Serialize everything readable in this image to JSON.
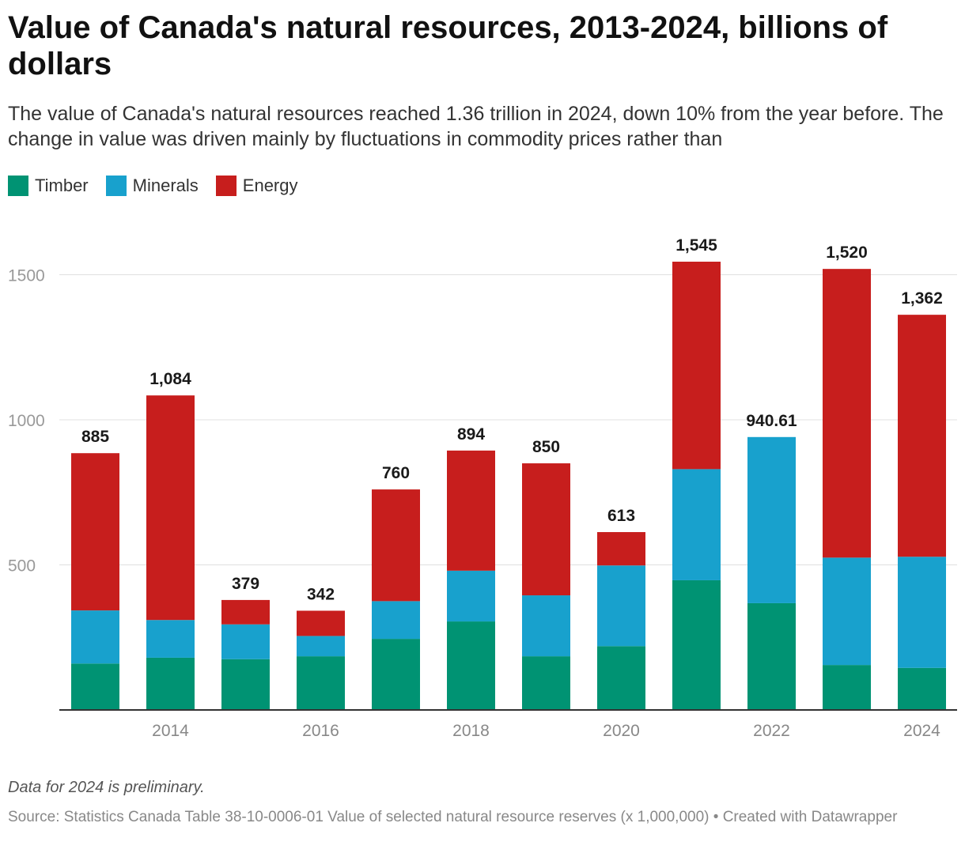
{
  "chart_data": {
    "type": "bar",
    "stacked": true,
    "title": "Value of Canada's natural resources, 2013-2024, billions of dollars",
    "subtitle": "The value of Canada's natural resources reached 1.36 trillion in 2024, down 10% from the year before. The change in value was driven mainly by fluctuations in commodity prices rather than",
    "categories": [
      "2013",
      "2014",
      "2015",
      "2016",
      "2017",
      "2018",
      "2019",
      "2020",
      "2021",
      "2022",
      "2023",
      "2024"
    ],
    "x_tick_labels": [
      "2014",
      "2016",
      "2018",
      "2020",
      "2022",
      "2024"
    ],
    "y_ticks": [
      500,
      1000,
      1500
    ],
    "y_tick_labels": [
      "500",
      "1000",
      "1500"
    ],
    "ylim": [
      0,
      1600
    ],
    "grid": true,
    "legend_position": "top-left",
    "series": [
      {
        "name": "Timber",
        "color": "#009373",
        "values": [
          160,
          180,
          175,
          185,
          245,
          305,
          185,
          220,
          447,
          368,
          155,
          145
        ]
      },
      {
        "name": "Minerals",
        "color": "#18a1cd",
        "values": [
          183,
          130,
          120,
          70,
          130,
          175,
          210,
          278,
          383,
          572.61,
          370,
          383
        ]
      },
      {
        "name": "Energy",
        "color": "#c71e1d",
        "values": [
          542,
          774,
          84,
          87,
          385,
          414,
          455,
          115,
          715,
          0,
          995,
          834
        ]
      }
    ],
    "totals": [
      885,
      1084,
      379,
      342,
      760,
      894,
      850,
      613,
      1545,
      940.61,
      1520,
      1362
    ],
    "total_labels": [
      "885",
      "1,084",
      "379",
      "342",
      "760",
      "894",
      "850",
      "613",
      "1,545",
      "940.61",
      "1,520",
      "1,362"
    ],
    "notes": "Data for 2024 is preliminary.",
    "source": "Source: Statistics Canada Table 38-10-0006-01 Value of selected natural resource reserves (x 1,000,000) • Created with Datawrapper"
  }
}
